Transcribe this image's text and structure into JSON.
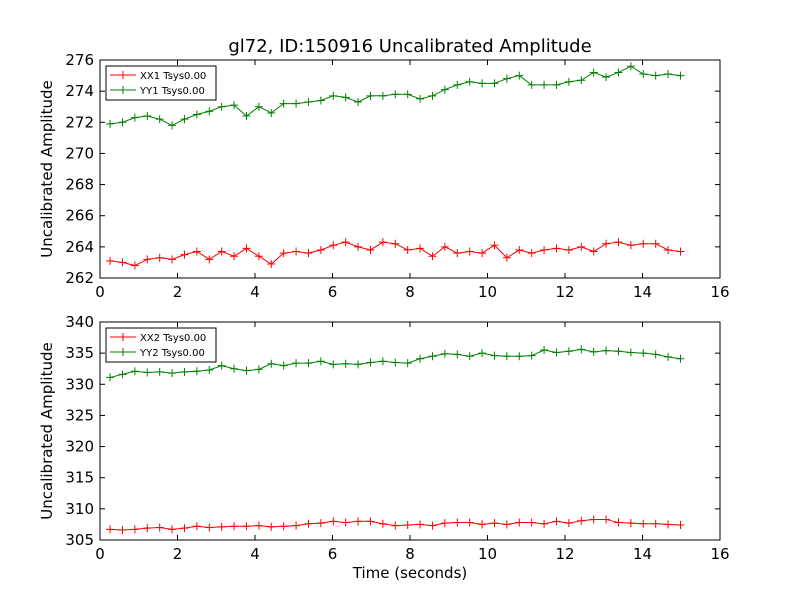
{
  "figure": {
    "title": "gl72, ID:150916 Uncalibrated Amplitude",
    "xlabel": "Time (seconds)"
  },
  "chart_data": [
    {
      "type": "line",
      "title": "gl72, ID:150916 Uncalibrated Amplitude",
      "xlabel": "",
      "ylabel": "Uncalibrated Amplitude",
      "xlim": [
        0,
        16
      ],
      "ylim": [
        262,
        276
      ],
      "x_ticks": [
        "0",
        "2",
        "4",
        "6",
        "8",
        "10",
        "12",
        "14",
        "16"
      ],
      "y_ticks": [
        "262",
        "264",
        "266",
        "268",
        "270",
        "272",
        "274",
        "276"
      ],
      "x_tick_values": [
        0,
        2,
        4,
        6,
        8,
        10,
        12,
        14,
        16
      ],
      "y_tick_values": [
        262,
        264,
        266,
        268,
        270,
        272,
        274,
        276
      ],
      "grid": false,
      "legend_position": "top-left",
      "x": [
        0.26,
        0.58,
        0.9,
        1.22,
        1.54,
        1.86,
        2.18,
        2.5,
        2.82,
        3.14,
        3.46,
        3.78,
        4.1,
        4.42,
        4.74,
        5.06,
        5.38,
        5.7,
        6.02,
        6.34,
        6.66,
        6.98,
        7.3,
        7.62,
        7.94,
        8.26,
        8.58,
        8.9,
        9.22,
        9.54,
        9.86,
        10.18,
        10.5,
        10.82,
        11.14,
        11.46,
        11.78,
        12.1,
        12.42,
        12.74,
        13.06,
        13.38,
        13.7,
        14.02,
        14.34,
        14.66,
        14.98
      ],
      "series": [
        {
          "name": "XX1 Tsys0.00",
          "color": "#ff0000",
          "values": [
            263.1,
            263.0,
            262.8,
            263.2,
            263.3,
            263.2,
            263.5,
            263.7,
            263.2,
            263.7,
            263.4,
            263.9,
            263.4,
            262.9,
            263.6,
            263.7,
            263.6,
            263.8,
            264.1,
            264.3,
            264.0,
            263.8,
            264.3,
            264.2,
            263.8,
            263.9,
            263.4,
            264.0,
            263.6,
            263.7,
            263.6,
            264.1,
            263.3,
            263.8,
            263.6,
            263.8,
            263.9,
            263.8,
            264.0,
            263.7,
            264.2,
            264.3,
            264.1,
            264.2,
            264.2,
            263.8,
            263.7
          ]
        },
        {
          "name": "YY1 Tsys0.00",
          "color": "#008000",
          "values": [
            271.9,
            272.0,
            272.3,
            272.4,
            272.2,
            271.8,
            272.2,
            272.5,
            272.7,
            273.0,
            273.1,
            272.4,
            273.0,
            272.6,
            273.2,
            273.2,
            273.3,
            273.4,
            273.7,
            273.6,
            273.3,
            273.7,
            273.7,
            273.8,
            273.8,
            273.5,
            273.7,
            274.1,
            274.4,
            274.6,
            274.5,
            274.5,
            274.8,
            275.0,
            274.4,
            274.4,
            274.4,
            274.6,
            274.7,
            275.2,
            274.9,
            275.2,
            275.6,
            275.1,
            275.0,
            275.1,
            275.0
          ]
        }
      ]
    },
    {
      "type": "line",
      "title": "",
      "xlabel": "Time (seconds)",
      "ylabel": "Uncalibrated Amplitude",
      "xlim": [
        0,
        16
      ],
      "ylim": [
        305,
        340
      ],
      "x_ticks": [
        "0",
        "2",
        "4",
        "6",
        "8",
        "10",
        "12",
        "14",
        "16"
      ],
      "y_ticks": [
        "305",
        "310",
        "315",
        "320",
        "325",
        "330",
        "335",
        "340"
      ],
      "x_tick_values": [
        0,
        2,
        4,
        6,
        8,
        10,
        12,
        14,
        16
      ],
      "y_tick_values": [
        305,
        310,
        315,
        320,
        325,
        330,
        335,
        340
      ],
      "grid": false,
      "legend_position": "top-left",
      "x": [
        0.26,
        0.58,
        0.9,
        1.22,
        1.54,
        1.86,
        2.18,
        2.5,
        2.82,
        3.14,
        3.46,
        3.78,
        4.1,
        4.42,
        4.74,
        5.06,
        5.38,
        5.7,
        6.02,
        6.34,
        6.66,
        6.98,
        7.3,
        7.62,
        7.94,
        8.26,
        8.58,
        8.9,
        9.22,
        9.54,
        9.86,
        10.18,
        10.5,
        10.82,
        11.14,
        11.46,
        11.78,
        12.1,
        12.42,
        12.74,
        13.06,
        13.38,
        13.7,
        14.02,
        14.34,
        14.66,
        14.98
      ],
      "series": [
        {
          "name": "XX2 Tsys0.00",
          "color": "#ff0000",
          "values": [
            306.7,
            306.6,
            306.7,
            306.9,
            307.0,
            306.7,
            306.9,
            307.2,
            307.0,
            307.1,
            307.2,
            307.2,
            307.3,
            307.1,
            307.2,
            307.3,
            307.6,
            307.7,
            308.0,
            307.8,
            308.0,
            308.0,
            307.6,
            307.3,
            307.4,
            307.5,
            307.3,
            307.7,
            307.8,
            307.8,
            307.5,
            307.7,
            307.5,
            307.8,
            307.8,
            307.6,
            308.0,
            307.7,
            308.1,
            308.3,
            308.3,
            307.8,
            307.7,
            307.6,
            307.6,
            307.5,
            307.4
          ]
        },
        {
          "name": "YY2 Tsys0.00",
          "color": "#008000",
          "values": [
            331.1,
            331.6,
            332.1,
            331.9,
            332.0,
            331.8,
            332.0,
            332.1,
            332.3,
            333.0,
            332.5,
            332.2,
            332.4,
            333.3,
            333.0,
            333.4,
            333.4,
            333.7,
            333.2,
            333.3,
            333.2,
            333.5,
            333.7,
            333.5,
            333.4,
            334.1,
            334.5,
            334.9,
            334.8,
            334.5,
            335.0,
            334.6,
            334.5,
            334.5,
            334.6,
            335.5,
            335.1,
            335.3,
            335.6,
            335.2,
            335.4,
            335.3,
            335.1,
            335.0,
            334.8,
            334.4,
            334.1
          ]
        }
      ]
    }
  ]
}
